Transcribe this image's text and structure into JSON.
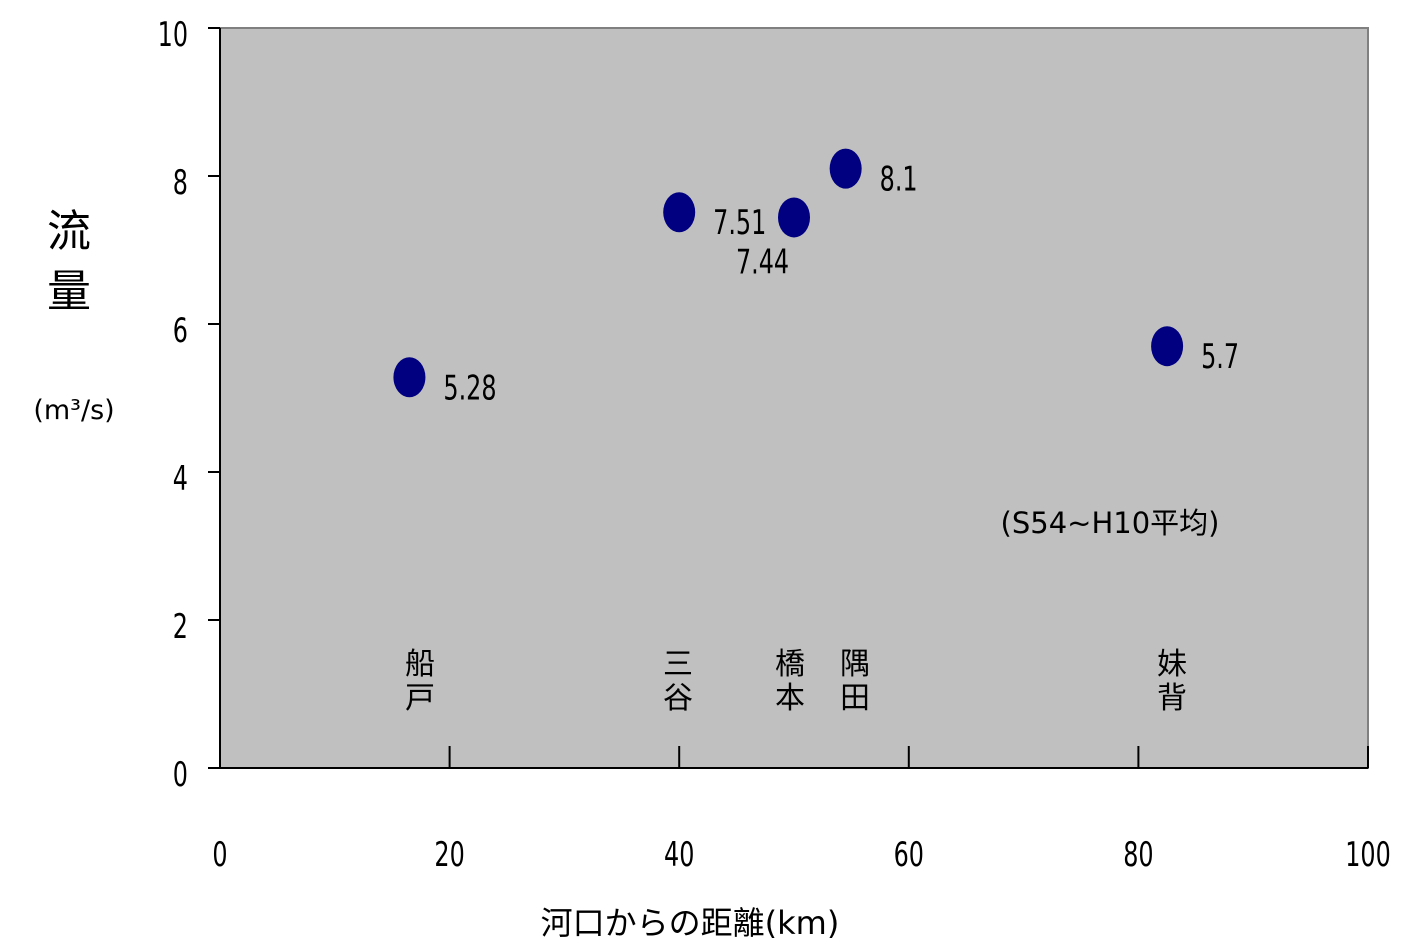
{
  "chart_data": {
    "type": "scatter",
    "xlabel": "河口からの距離(km)",
    "ylabel": "流量",
    "ylabel_unit": "(m³/s)",
    "note": "(S54~H10平均)",
    "xlim": [
      0,
      100
    ],
    "ylim": [
      0,
      10
    ],
    "xticks": [
      "0",
      "20",
      "40",
      "60",
      "80",
      "100"
    ],
    "yticks": [
      "0",
      "2",
      "4",
      "6",
      "8",
      "10"
    ],
    "points": [
      {
        "x": 16.5,
        "y": 5.28,
        "label": "5.28",
        "station": [
          "船",
          "戸"
        ]
      },
      {
        "x": 40.0,
        "y": 7.51,
        "label": "7.51",
        "station": [
          "三",
          "谷"
        ]
      },
      {
        "x": 50.0,
        "y": 7.44,
        "label": "7.44",
        "station": [
          "橋",
          "本"
        ]
      },
      {
        "x": 54.5,
        "y": 8.1,
        "label": "8.1",
        "station": [
          "隅",
          "田"
        ]
      },
      {
        "x": 82.5,
        "y": 5.7,
        "label": "5.7",
        "station": [
          "妹",
          "背"
        ]
      }
    ],
    "colors": {
      "plot_background": "#c0c0c0",
      "marker": "#000080"
    },
    "grid": false,
    "legend": "none"
  }
}
